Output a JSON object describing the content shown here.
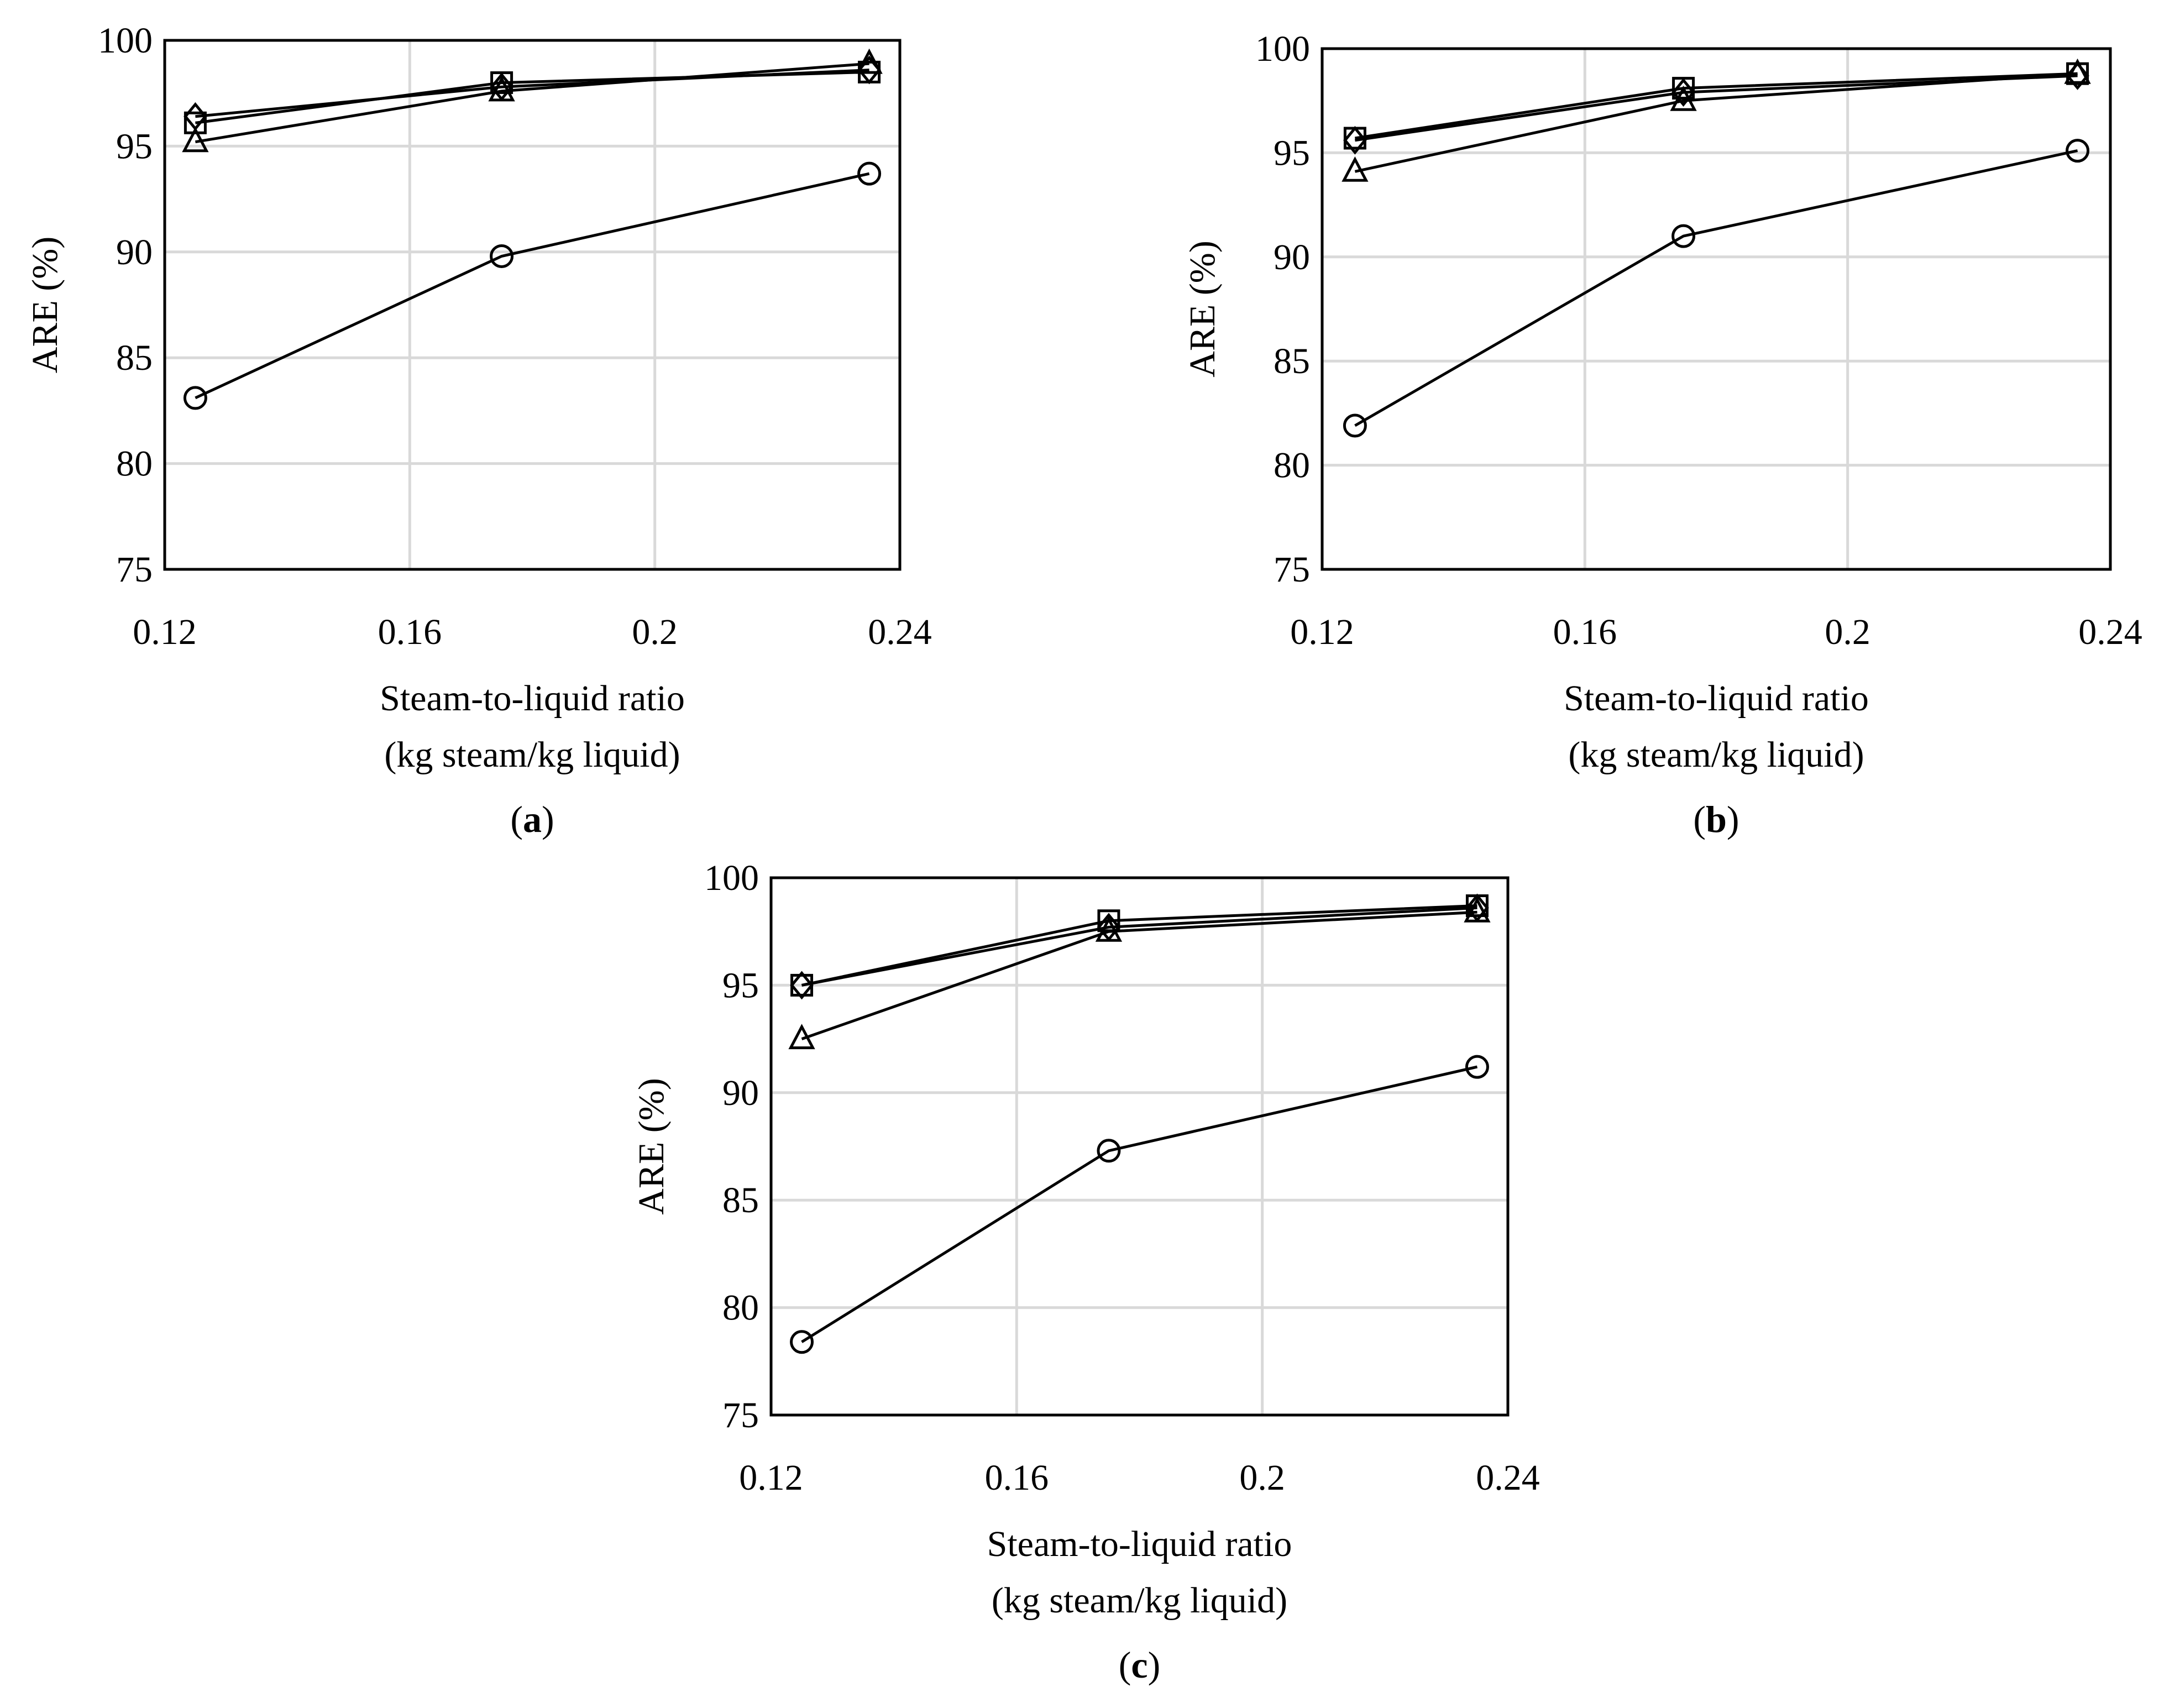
{
  "figure": {
    "colors": {
      "grid": "#d9d9d9",
      "axis": "#000000",
      "marker": "#000000",
      "line": "#000000"
    }
  },
  "chart_data": [
    {
      "type": "line",
      "panel_label": "a",
      "xlabel": [
        "Steam-to-liquid ratio",
        "(kg steam/kg liquid)"
      ],
      "ylabel": "ARE (%)",
      "xlim": [
        0.12,
        0.24
      ],
      "ylim": [
        75,
        100
      ],
      "xticks": [
        0.12,
        0.16,
        0.2,
        0.24
      ],
      "xtick_labels": [
        "0.12",
        "0.16",
        "0.2",
        "0.24"
      ],
      "yticks": [
        75,
        80,
        85,
        90,
        95,
        100
      ],
      "ytick_labels": [
        "75",
        "80",
        "85",
        "90",
        "95",
        "100"
      ],
      "grid": true,
      "x": [
        0.125,
        0.175,
        0.235
      ],
      "series": [
        {
          "name": "circle",
          "marker": "circle",
          "values": [
            83.1,
            89.8,
            93.7
          ]
        },
        {
          "name": "triangle",
          "marker": "triangle",
          "values": [
            95.2,
            97.6,
            98.9
          ]
        },
        {
          "name": "square",
          "marker": "square",
          "values": [
            96.1,
            98.0,
            98.5
          ]
        },
        {
          "name": "diamond",
          "marker": "diamond",
          "values": [
            96.4,
            97.8,
            98.6
          ]
        }
      ]
    },
    {
      "type": "line",
      "panel_label": "b",
      "xlabel": [
        "Steam-to-liquid ratio",
        "(kg steam/kg liquid)"
      ],
      "ylabel": "ARE (%)",
      "xlim": [
        0.12,
        0.24
      ],
      "ylim": [
        75,
        100
      ],
      "xticks": [
        0.12,
        0.16,
        0.2,
        0.24
      ],
      "xtick_labels": [
        "0.12",
        "0.16",
        "0.2",
        "0.24"
      ],
      "yticks": [
        75,
        80,
        85,
        90,
        95,
        100
      ],
      "ytick_labels": [
        "75",
        "80",
        "85",
        "90",
        "95",
        "100"
      ],
      "grid": true,
      "x": [
        0.125,
        0.175,
        0.235
      ],
      "series": [
        {
          "name": "circle",
          "marker": "circle",
          "values": [
            81.9,
            91.0,
            95.1
          ]
        },
        {
          "name": "triangle",
          "marker": "triangle",
          "values": [
            94.1,
            97.5,
            98.8
          ]
        },
        {
          "name": "square",
          "marker": "square",
          "values": [
            95.7,
            98.1,
            98.8
          ]
        },
        {
          "name": "diamond",
          "marker": "diamond",
          "values": [
            95.6,
            97.9,
            98.7
          ]
        }
      ]
    },
    {
      "type": "line",
      "panel_label": "c",
      "xlabel": [
        "Steam-to-liquid ratio",
        "(kg steam/kg liquid)"
      ],
      "ylabel": "ARE (%)",
      "xlim": [
        0.12,
        0.24
      ],
      "ylim": [
        75,
        100
      ],
      "xticks": [
        0.12,
        0.16,
        0.2,
        0.24
      ],
      "xtick_labels": [
        "0.12",
        "0.16",
        "0.2",
        "0.24"
      ],
      "yticks": [
        75,
        80,
        85,
        90,
        95,
        100
      ],
      "ytick_labels": [
        "75",
        "80",
        "85",
        "90",
        "95",
        "100"
      ],
      "grid": true,
      "x": [
        0.125,
        0.175,
        0.235
      ],
      "series": [
        {
          "name": "circle",
          "marker": "circle",
          "values": [
            78.4,
            87.3,
            91.2
          ]
        },
        {
          "name": "triangle",
          "marker": "triangle",
          "values": [
            92.5,
            97.5,
            98.4
          ]
        },
        {
          "name": "square",
          "marker": "square",
          "values": [
            95.0,
            98.0,
            98.7
          ]
        },
        {
          "name": "diamond",
          "marker": "diamond",
          "values": [
            95.0,
            97.7,
            98.6
          ]
        }
      ]
    }
  ]
}
